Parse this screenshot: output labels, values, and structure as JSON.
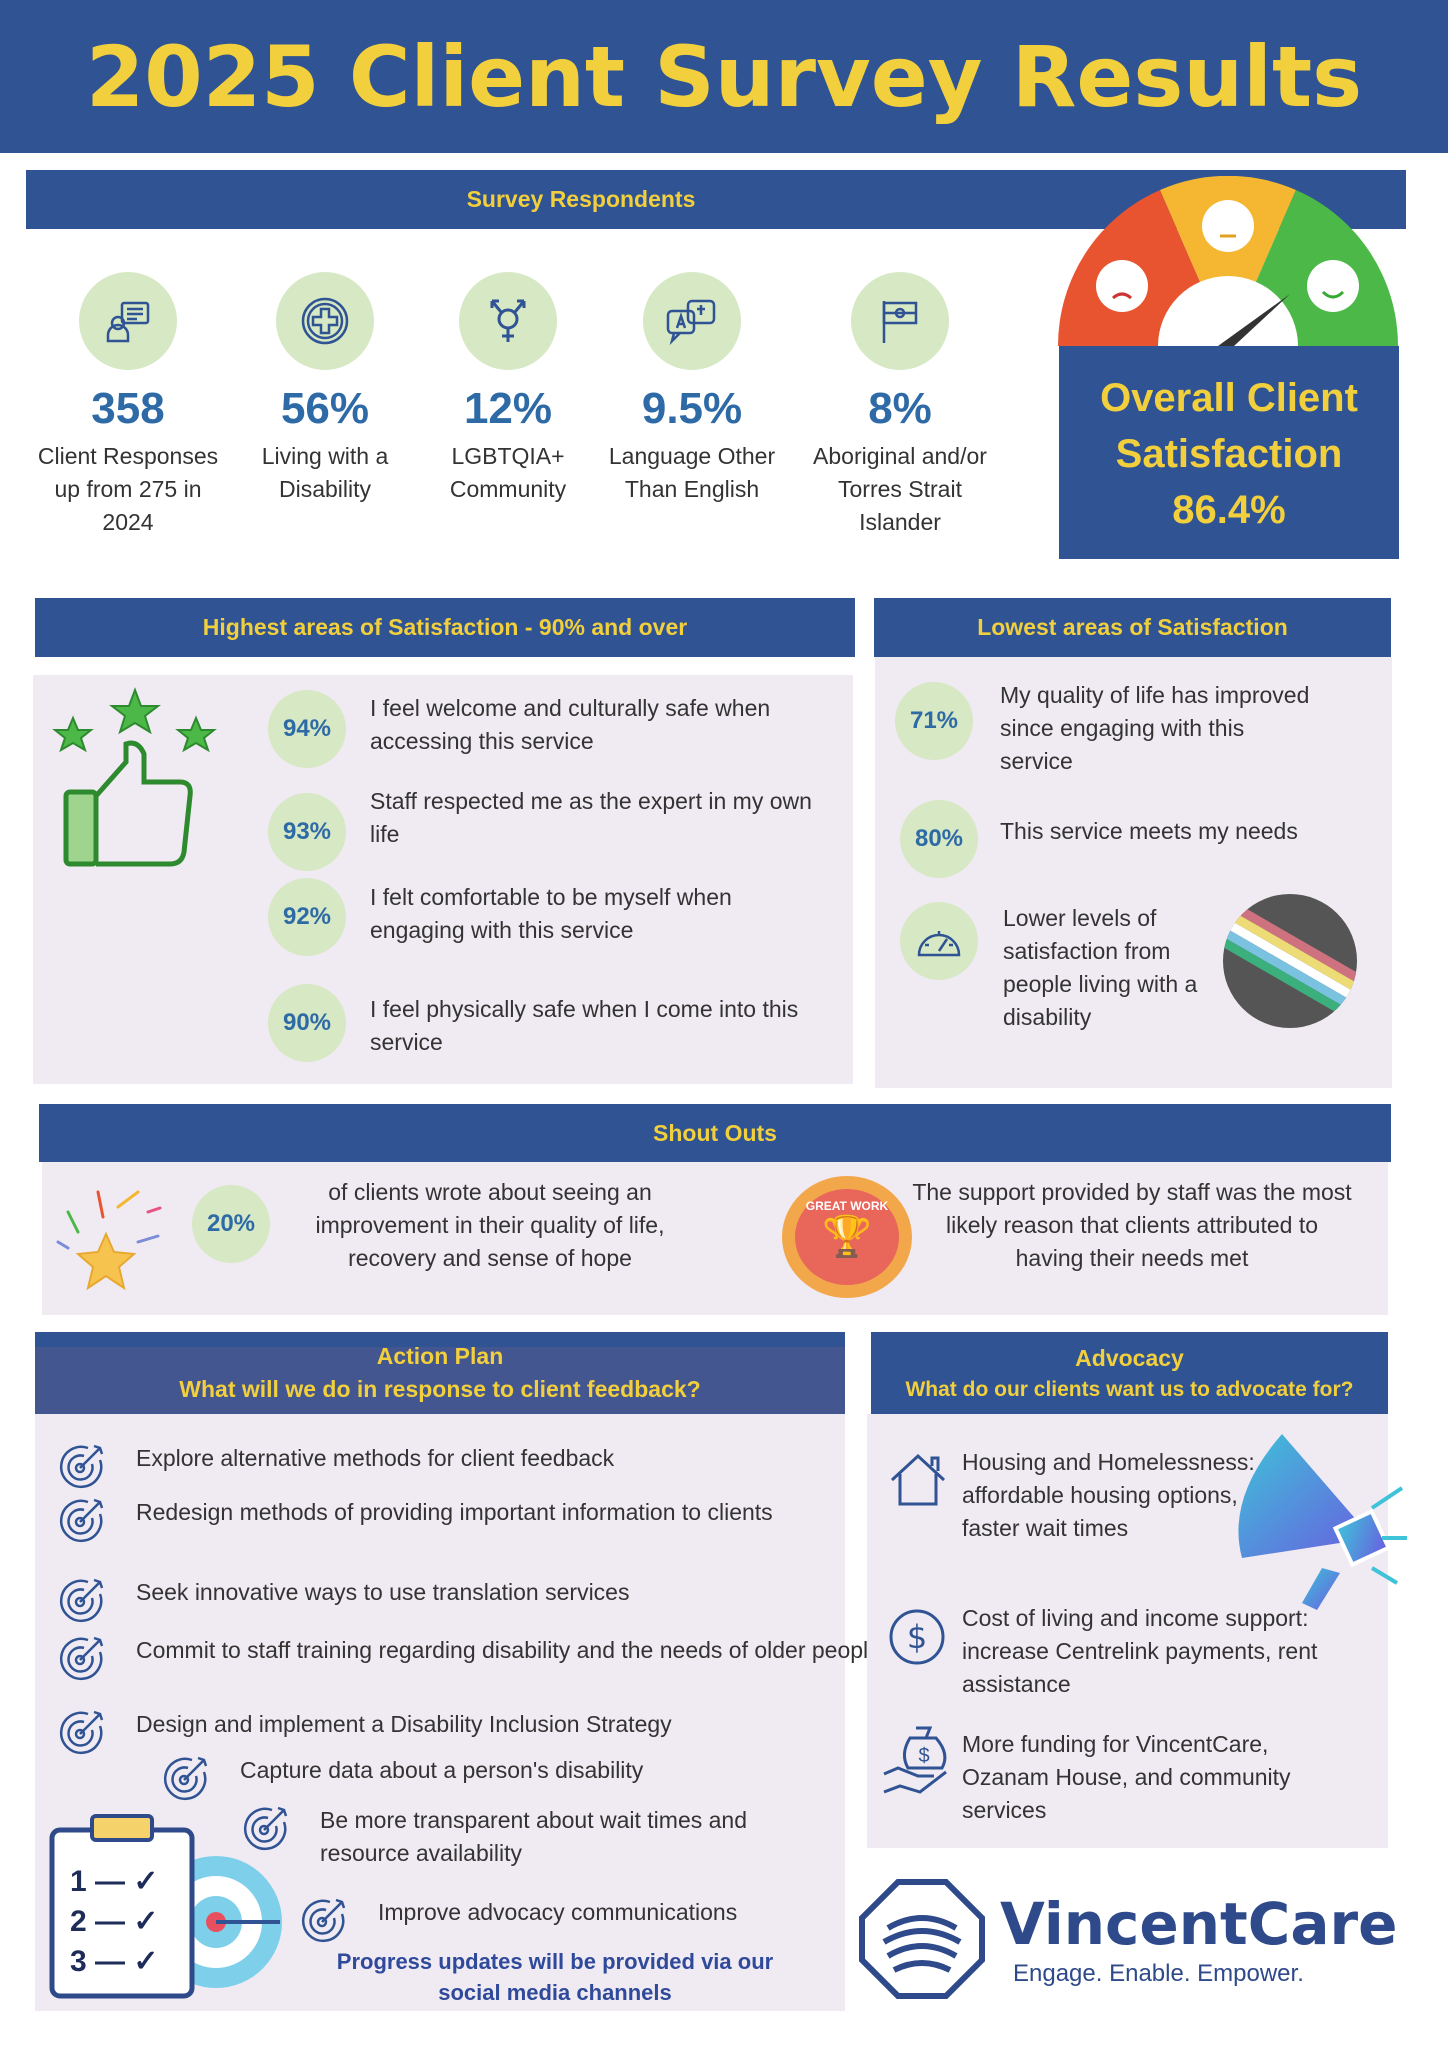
{
  "title": "2025 Client Survey Results",
  "respondents": {
    "heading": "Survey Respondents",
    "stats": [
      {
        "value": "358",
        "label": "Client Responses up from 275 in 2024",
        "icon": "client-chat-icon"
      },
      {
        "value": "56%",
        "label": "Living with a Disability",
        "icon": "medical-cross-icon"
      },
      {
        "value": "12%",
        "label": "LGBTQIA+ Community",
        "icon": "gender-symbol-icon"
      },
      {
        "value": "9.5%",
        "label": "Language Other Than English",
        "icon": "translation-icon"
      },
      {
        "value": "8%",
        "label": "Aboriginal and/or Torres Strait Islander",
        "icon": "flag-icon"
      }
    ]
  },
  "overall": {
    "label": "Overall Client Satisfaction",
    "value": "86.4%",
    "gauge_colors": [
      "#e8542f",
      "#f5b731",
      "#4cb848"
    ]
  },
  "highest": {
    "heading": "Highest areas of Satisfaction - 90% and over",
    "items": [
      {
        "pct": "94%",
        "text": "I feel welcome and culturally safe when accessing this service"
      },
      {
        "pct": "93%",
        "text": "Staff respected me as the expert in my own life"
      },
      {
        "pct": "92%",
        "text": "I felt comfortable to be myself when engaging with this service"
      },
      {
        "pct": "90%",
        "text": "I feel physically safe when I come into this service"
      }
    ]
  },
  "lowest": {
    "heading": "Lowest areas of Satisfaction",
    "items": [
      {
        "pct": "71%",
        "text": "My quality of life has improved since engaging with this service"
      },
      {
        "pct": "80%",
        "text": "This service meets my needs"
      },
      {
        "text": "Lower levels of satisfaction from people living with a disability"
      }
    ]
  },
  "shoutouts": {
    "heading": "Shout Outs",
    "pct": "20%",
    "left": "of clients wrote about seeing an improvement in their quality of life, recovery and sense of hope",
    "badge": "GREAT WORK",
    "right": "The support provided by staff was the most likely reason that clients attributed to having their needs met"
  },
  "action": {
    "heading": "Action Plan",
    "sub": "What will we do in response to client feedback?",
    "items": [
      "Explore alternative methods for client feedback",
      "Redesign methods of providing important information to clients",
      "Seek innovative ways to use translation services",
      "Commit to staff training regarding disability and the needs of older people",
      "Design and implement a Disability Inclusion Strategy",
      "Capture data about a person's disability",
      "Be more transparent about wait times and resource availability",
      "Improve advocacy communications"
    ],
    "checklist": [
      "1",
      "2",
      "3"
    ],
    "footer": "Progress updates will be provided via our social media channels"
  },
  "advocacy": {
    "heading": "Advocacy",
    "sub": "What do our clients want us to advocate for?",
    "items": [
      {
        "icon": "house-icon",
        "text": "Housing and Homelessness: affordable housing options, faster wait times"
      },
      {
        "icon": "dollar-icon",
        "text": "Cost of living and income support: increase Centrelink payments, rent assistance"
      },
      {
        "icon": "money-bag-hand-icon",
        "text": "More funding for VincentCare, Ozanam House, and community services"
      }
    ]
  },
  "logo": {
    "name": "VincentCare",
    "tagline": "Engage. Enable. Empower."
  },
  "colors": {
    "primary": "#2f5393",
    "accent": "#f2cf3c",
    "badge": "#d7e8c4",
    "panel": "#f0eaf3"
  }
}
